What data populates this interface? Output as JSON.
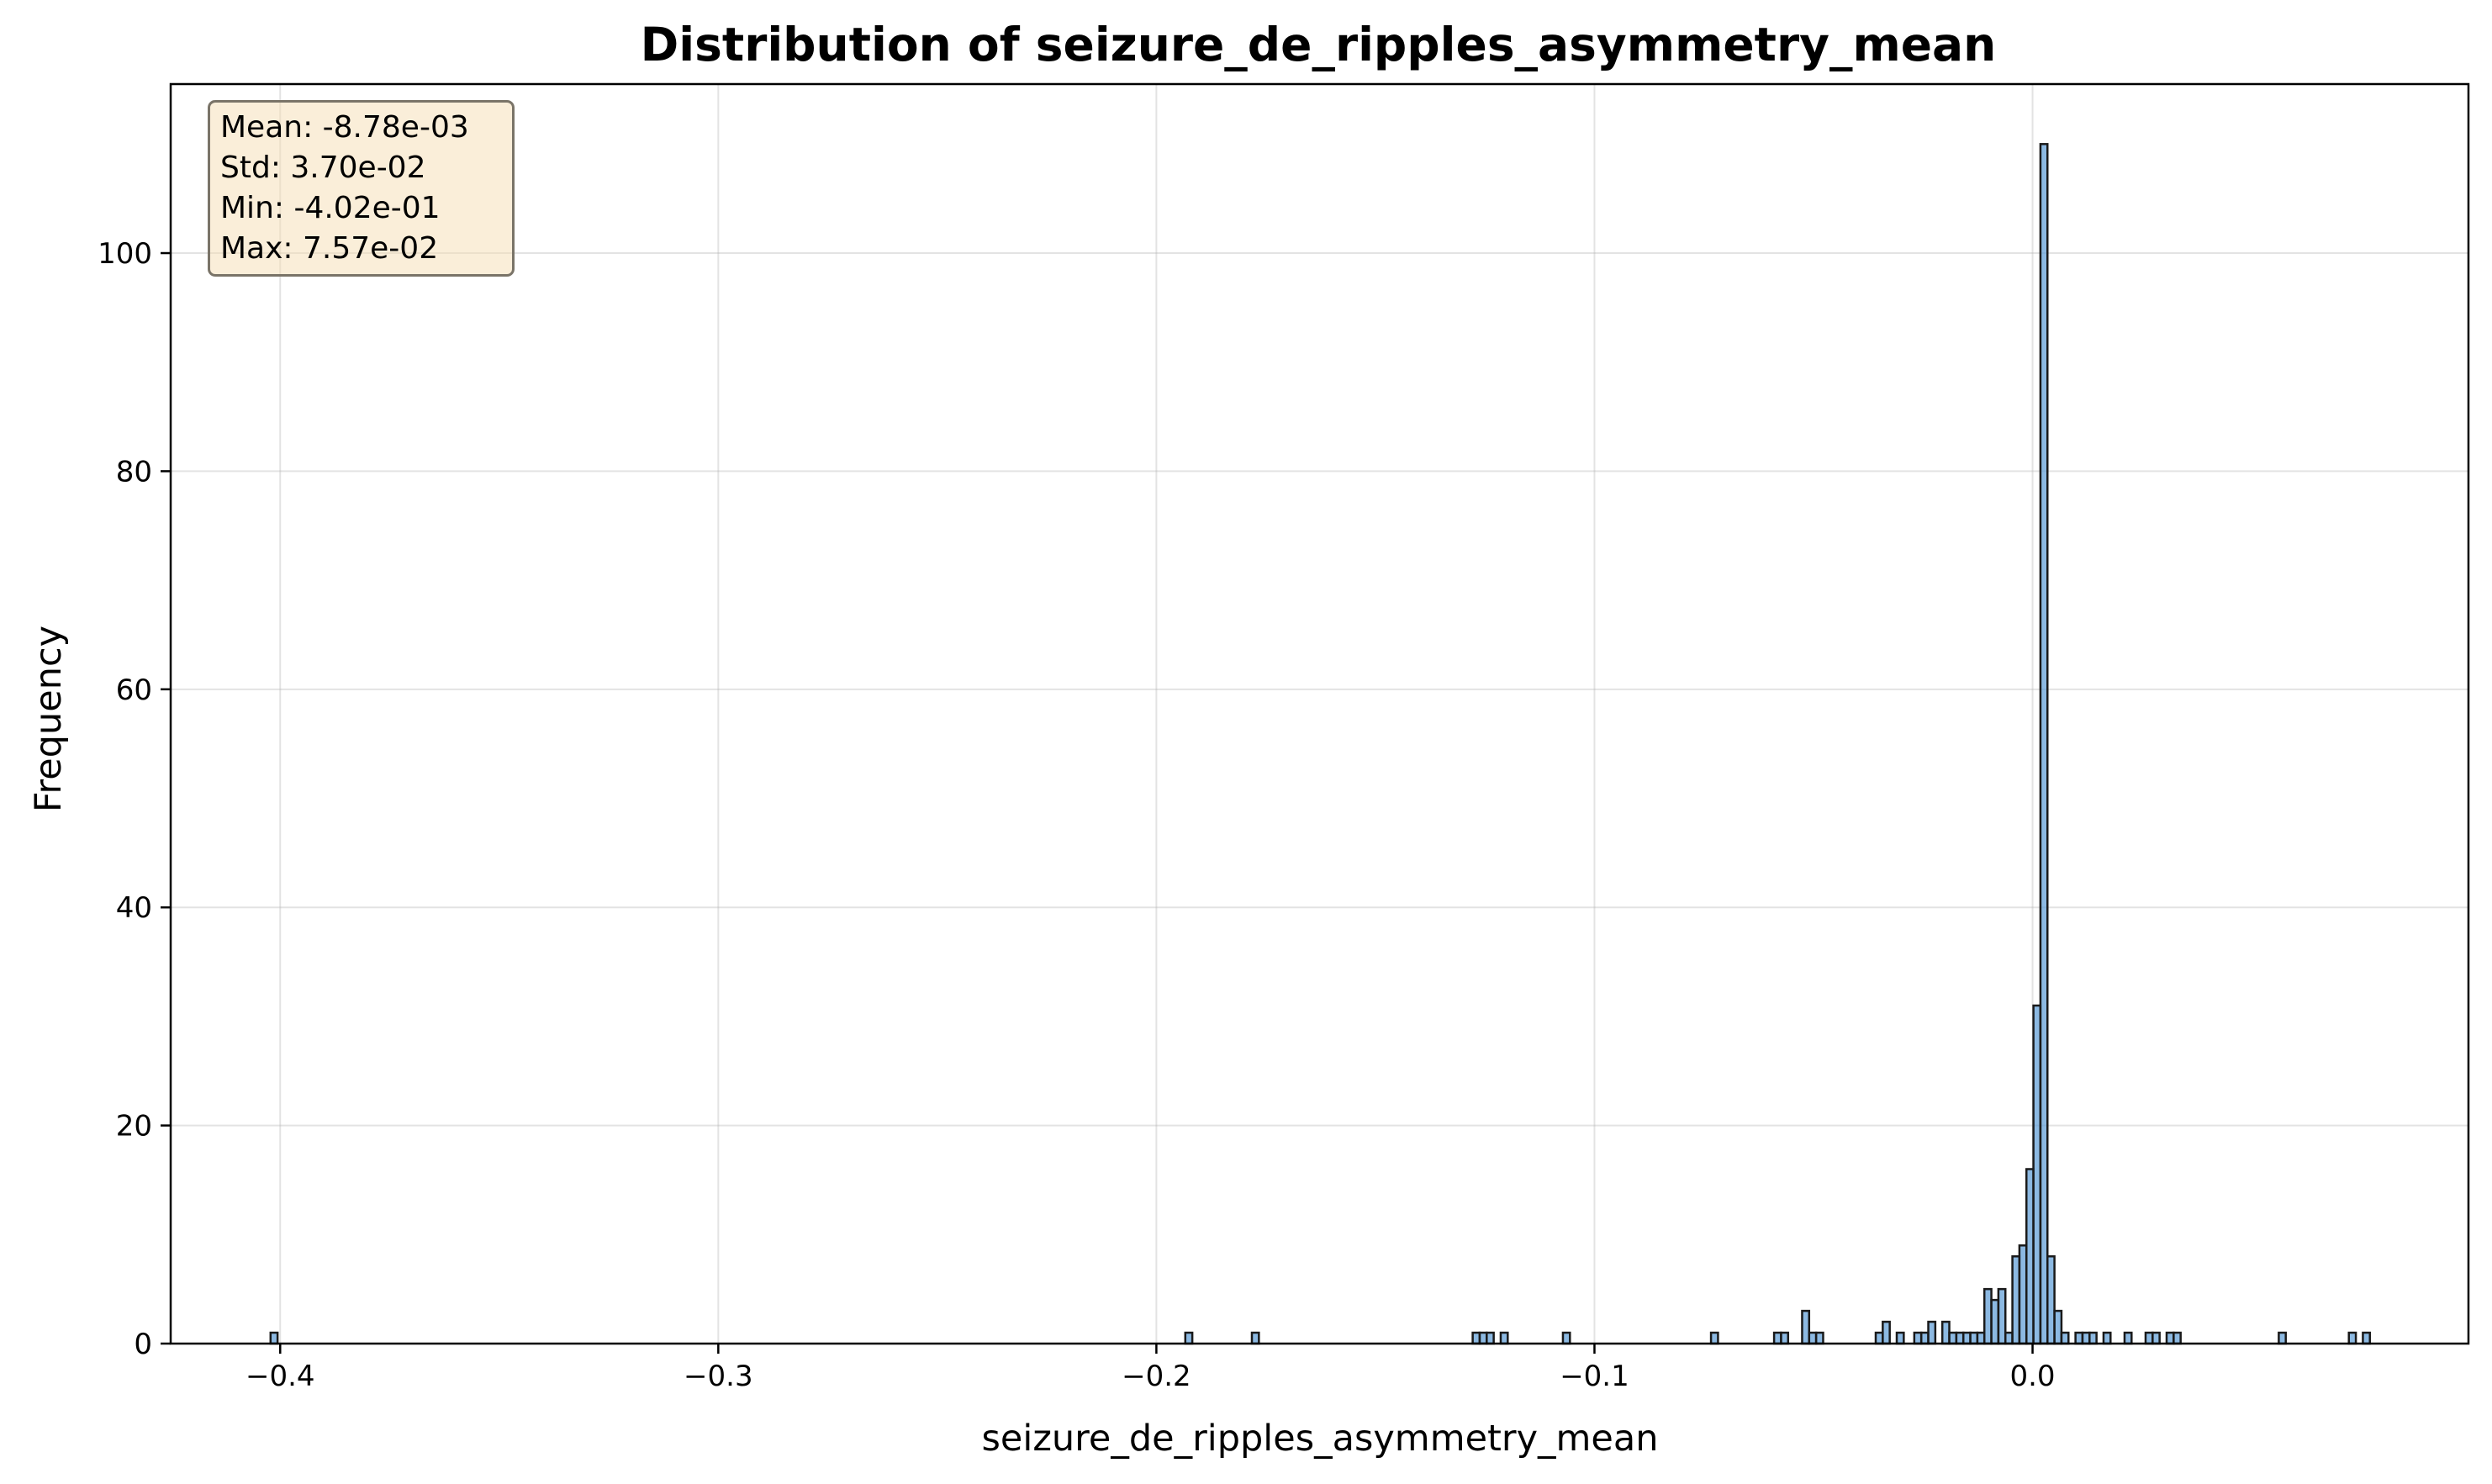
{
  "chart_data": {
    "type": "histogram",
    "title": "Distribution of seizure_de_ripples_asymmetry_mean",
    "xlabel": "seizure_de_ripples_asymmetry_mean",
    "ylabel": "Frequency",
    "xlim": [
      -0.425,
      0.0995
    ],
    "ylim": [
      0,
      115.5
    ],
    "xticks": [
      -0.4,
      -0.3,
      -0.2,
      -0.1,
      0.0
    ],
    "xtick_labels": [
      "−0.4",
      "−0.3",
      "−0.2",
      "−0.1",
      "0.0"
    ],
    "yticks": [
      0,
      20,
      40,
      60,
      80,
      100
    ],
    "ytick_labels": [
      "0",
      "20",
      "40",
      "60",
      "80",
      "100"
    ],
    "grid": true,
    "bar_color": "#5b9bd5",
    "edge_color": "#1a1a1a",
    "bin_width": 0.0016,
    "bins": [
      {
        "x": -0.4014,
        "count": 1
      },
      {
        "x": -0.1926,
        "count": 1
      },
      {
        "x": -0.1774,
        "count": 1
      },
      {
        "x": -0.127,
        "count": 1
      },
      {
        "x": -0.1254,
        "count": 1
      },
      {
        "x": -0.1238,
        "count": 1
      },
      {
        "x": -0.1206,
        "count": 1
      },
      {
        "x": -0.1064,
        "count": 1
      },
      {
        "x": -0.0726,
        "count": 1
      },
      {
        "x": -0.0582,
        "count": 1
      },
      {
        "x": -0.0566,
        "count": 1
      },
      {
        "x": -0.0518,
        "count": 3
      },
      {
        "x": -0.0502,
        "count": 1
      },
      {
        "x": -0.0486,
        "count": 1
      },
      {
        "x": -0.035,
        "count": 1
      },
      {
        "x": -0.0334,
        "count": 2
      },
      {
        "x": -0.0302,
        "count": 1
      },
      {
        "x": -0.0262,
        "count": 1
      },
      {
        "x": -0.0246,
        "count": 1
      },
      {
        "x": -0.023,
        "count": 2
      },
      {
        "x": -0.0198,
        "count": 2
      },
      {
        "x": -0.0182,
        "count": 1
      },
      {
        "x": -0.0166,
        "count": 1
      },
      {
        "x": -0.015,
        "count": 1
      },
      {
        "x": -0.0134,
        "count": 1
      },
      {
        "x": -0.0118,
        "count": 1
      },
      {
        "x": -0.0102,
        "count": 5
      },
      {
        "x": -0.0086,
        "count": 4
      },
      {
        "x": -0.007,
        "count": 5
      },
      {
        "x": -0.0054,
        "count": 1
      },
      {
        "x": -0.0038,
        "count": 8
      },
      {
        "x": -0.0022,
        "count": 9
      },
      {
        "x": -0.0006,
        "count": 16
      },
      {
        "x": 0.001,
        "count": 31
      },
      {
        "x": 0.0026,
        "count": 110
      },
      {
        "x": 0.0042,
        "count": 8
      },
      {
        "x": 0.0058,
        "count": 3
      },
      {
        "x": 0.0074,
        "count": 1
      },
      {
        "x": 0.0106,
        "count": 1
      },
      {
        "x": 0.0122,
        "count": 1
      },
      {
        "x": 0.0138,
        "count": 1
      },
      {
        "x": 0.017,
        "count": 1
      },
      {
        "x": 0.0218,
        "count": 1
      },
      {
        "x": 0.0266,
        "count": 1
      },
      {
        "x": 0.0282,
        "count": 1
      },
      {
        "x": 0.0314,
        "count": 1
      },
      {
        "x": 0.033,
        "count": 1
      },
      {
        "x": 0.057,
        "count": 1
      },
      {
        "x": 0.073,
        "count": 1
      },
      {
        "x": 0.0762,
        "count": 1
      }
    ]
  },
  "stats": {
    "mean": "Mean: -8.78e-03",
    "std": "Std: 3.70e-02",
    "min": "Min: -4.02e-01",
    "max": "Max: 7.57e-02"
  }
}
